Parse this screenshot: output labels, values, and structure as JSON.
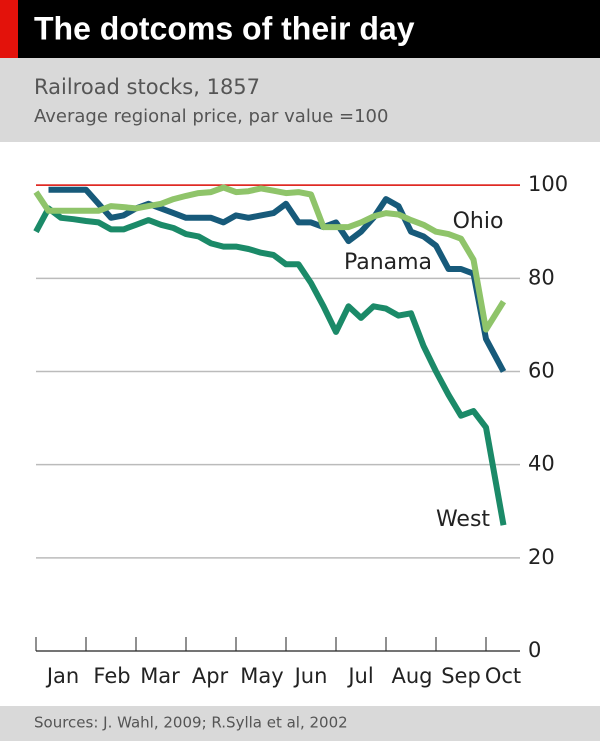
{
  "chart_data": {
    "type": "line",
    "title": "The dotcoms of their day",
    "subtitle": "Railroad stocks, 1857",
    "y_label": "Average regional price, par value =100",
    "source": "Sources: J. Wahl, 2009; R.Sylla et al, 2002",
    "x": [
      0,
      0.25,
      0.5,
      0.75,
      1,
      1.25,
      1.5,
      1.75,
      2,
      2.25,
      2.5,
      2.75,
      3,
      3.25,
      3.5,
      3.75,
      4,
      4.25,
      4.5,
      4.75,
      5,
      5.25,
      5.5,
      5.75,
      6,
      6.25,
      6.5,
      6.75,
      7,
      7.25,
      7.5,
      7.75,
      8,
      8.25,
      8.5,
      8.75,
      9,
      9.35
    ],
    "series": [
      {
        "name": "West",
        "color": "#1b8a68",
        "values": [
          90,
          95,
          93,
          92.7,
          92.3,
          92,
          90.5,
          90.5,
          91.5,
          92.5,
          91.5,
          90.8,
          89.5,
          89,
          87.5,
          86.8,
          86.8,
          86.3,
          85.5,
          85,
          83,
          83,
          79,
          74,
          68.5,
          74,
          71.5,
          74,
          73.5,
          72,
          72.5,
          65.5,
          60,
          55,
          50.5,
          51.5,
          48,
          27
        ]
      },
      {
        "name": "Panama",
        "color": "#175a7a",
        "values": [
          null,
          99,
          99,
          99,
          99,
          96,
          93,
          93.5,
          95,
          96,
          95,
          94,
          93,
          93,
          93,
          92,
          93.5,
          93,
          93.5,
          94,
          96,
          92,
          92,
          91,
          92,
          88,
          90,
          93,
          97,
          95.5,
          90,
          89,
          87,
          82,
          82,
          81,
          67,
          60
        ]
      },
      {
        "name": "Ohio",
        "color": "#8fc46a",
        "values": [
          98.5,
          94.5,
          94.5,
          94.5,
          94.5,
          94.5,
          95.5,
          95.3,
          95,
          95.5,
          96,
          97,
          97.7,
          98.3,
          98.5,
          99.5,
          98.5,
          98.7,
          99.3,
          98.8,
          98.3,
          98.5,
          98,
          91,
          91,
          91,
          92,
          93.3,
          94,
          93.7,
          92.5,
          91.5,
          90,
          89.5,
          88.5,
          84,
          69,
          75
        ]
      }
    ],
    "xlim": [
      0,
      9.68
    ],
    "xticks": [
      {
        "value": 0.54,
        "label": "Jan"
      },
      {
        "value": 1.52,
        "label": "Feb"
      },
      {
        "value": 2.48,
        "label": "Mar"
      },
      {
        "value": 3.48,
        "label": "Apr"
      },
      {
        "value": 4.52,
        "label": "May"
      },
      {
        "value": 5.5,
        "label": "Jun"
      },
      {
        "value": 6.5,
        "label": "Jul"
      },
      {
        "value": 7.52,
        "label": "Aug"
      },
      {
        "value": 8.5,
        "label": "Sep"
      },
      {
        "value": 9.34,
        "label": "Oct"
      }
    ],
    "xminorticks": [
      0,
      1,
      2,
      3,
      4,
      5,
      6,
      7,
      8,
      9
    ],
    "ylim": [
      0,
      105.4
    ],
    "yticks": [
      0,
      20,
      40,
      60,
      80,
      100
    ],
    "grid": true,
    "reference_line": {
      "value": 100,
      "color": "#e3120b"
    }
  }
}
